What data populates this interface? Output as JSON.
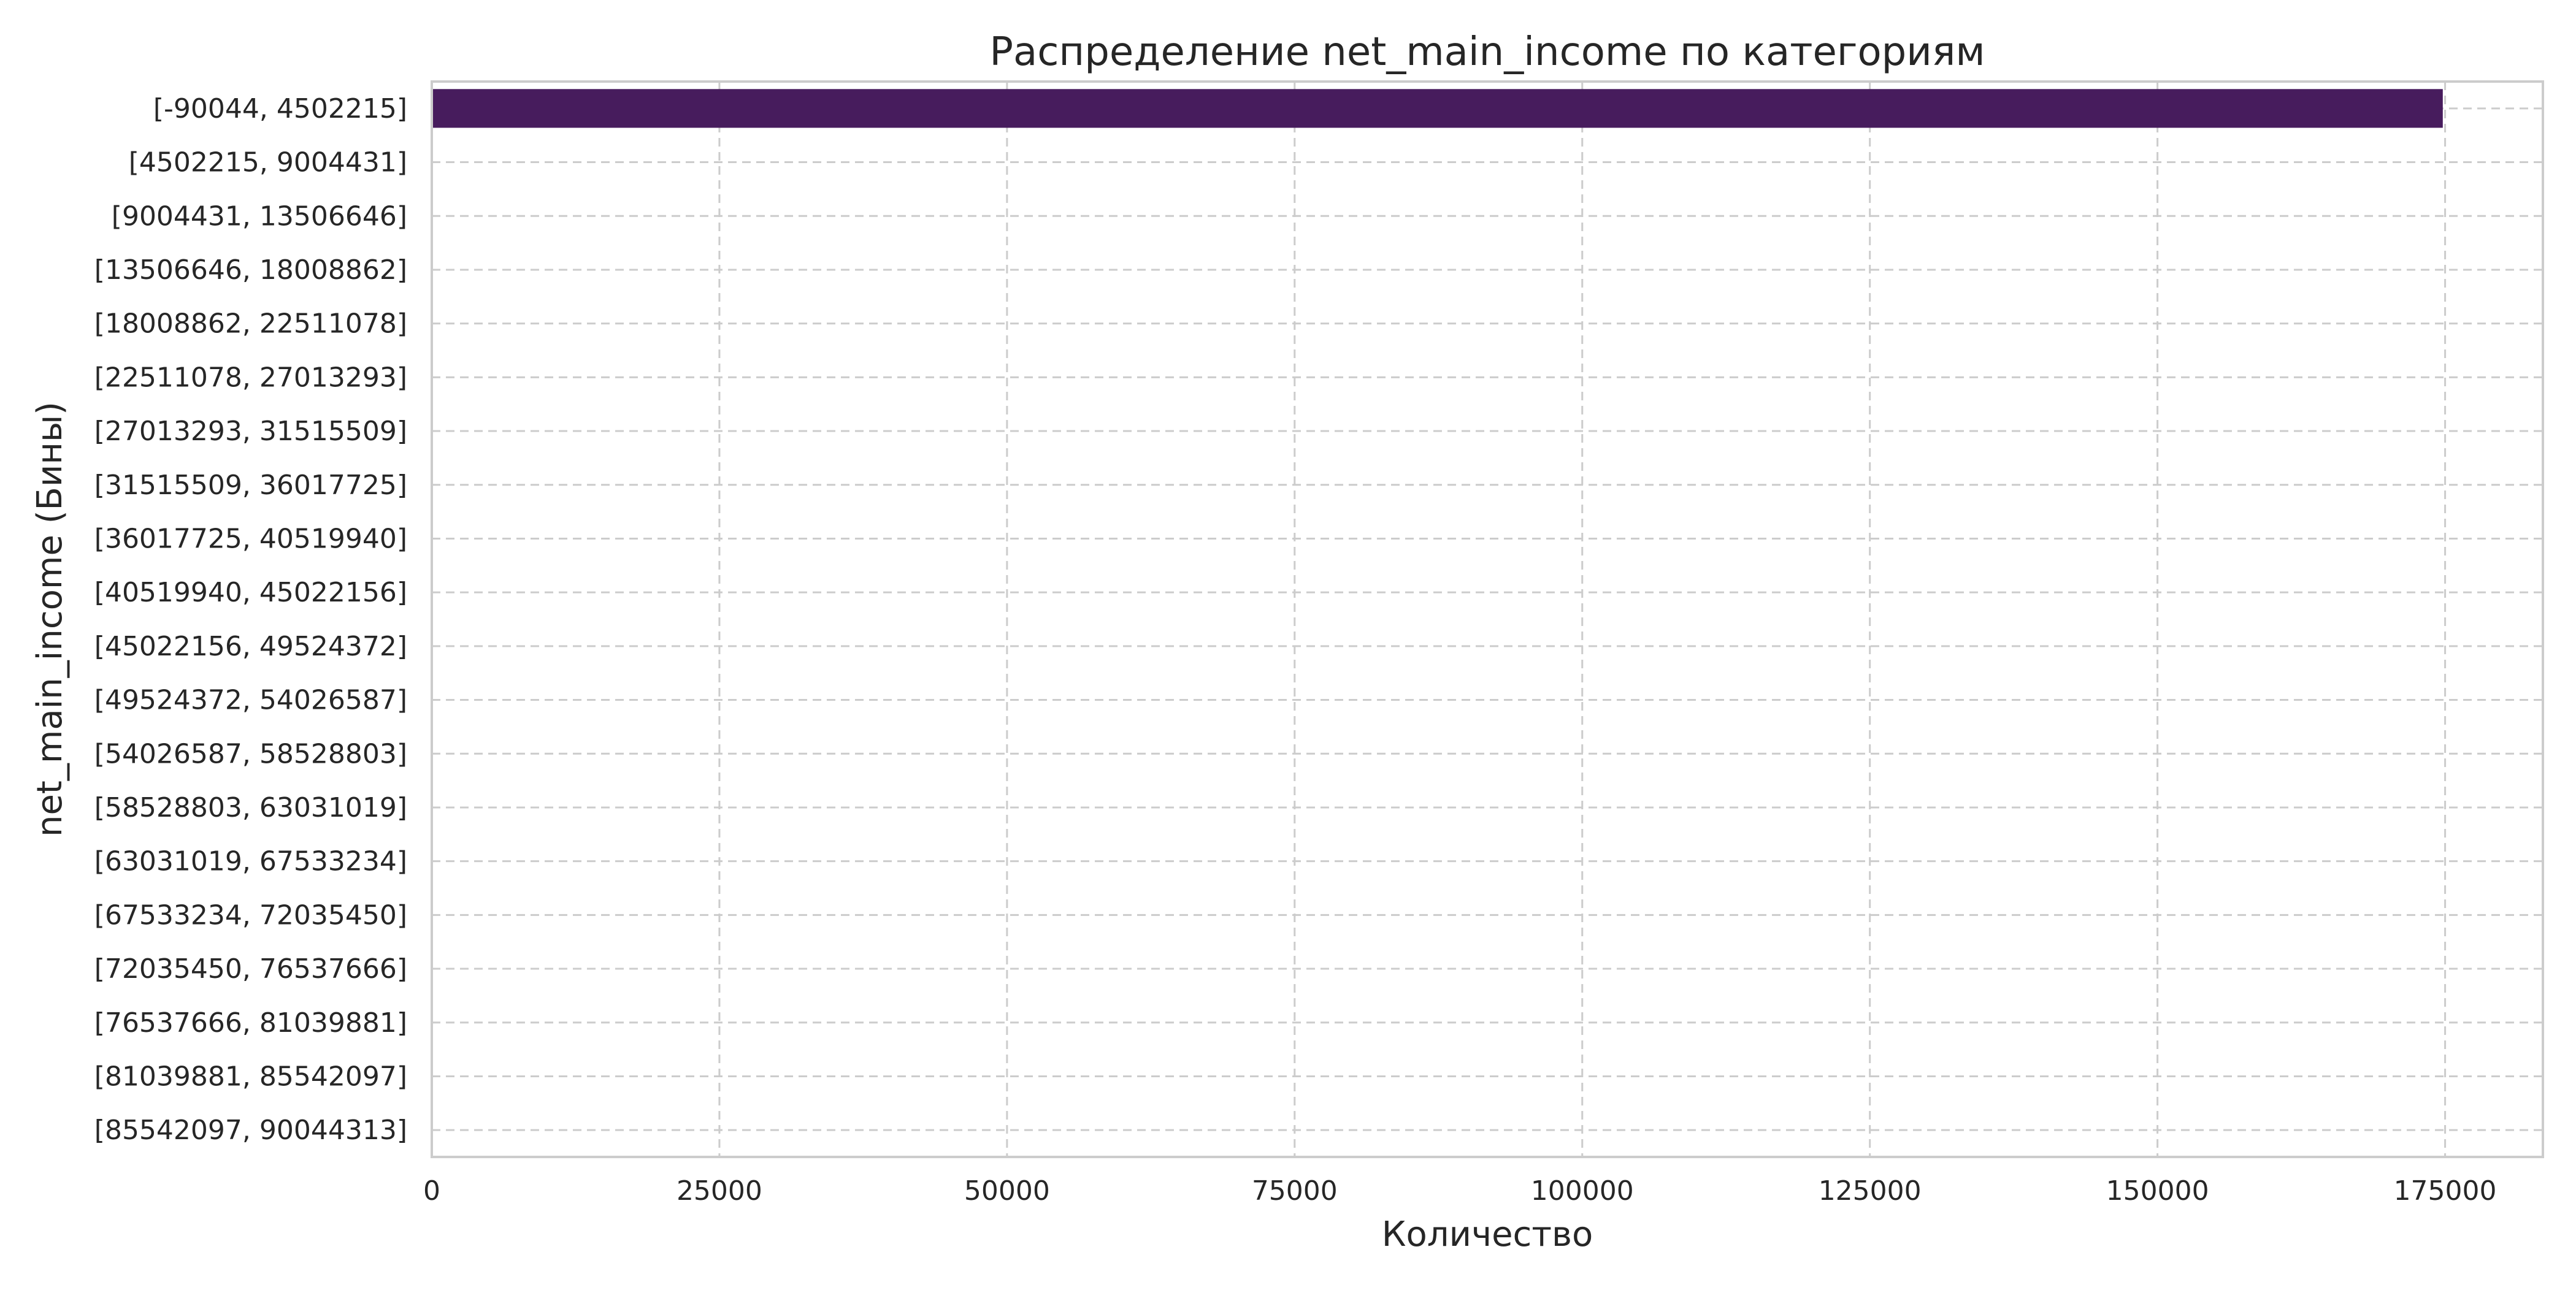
{
  "chart_data": {
    "type": "bar",
    "orientation": "horizontal",
    "title": "Распределение net_main_income по категориям",
    "xlabel": "Количество",
    "ylabel": "net_main_income (Бины)",
    "categories": [
      "[-90044, 4502215]",
      "[4502215, 9004431]",
      "[9004431, 13506646]",
      "[13506646, 18008862]",
      "[18008862, 22511078]",
      "[22511078, 27013293]",
      "[27013293, 31515509]",
      "[31515509, 36017725]",
      "[36017725, 40519940]",
      "[40519940, 45022156]",
      "[45022156, 49524372]",
      "[49524372, 54026587]",
      "[54026587, 58528803]",
      "[58528803, 63031019]",
      "[63031019, 67533234]",
      "[67533234, 72035450]",
      "[72035450, 76537666]",
      "[76537666, 81039881]",
      "[81039881, 85542097]",
      "[85542097, 90044313]"
    ],
    "values": [
      174800,
      0,
      0,
      0,
      0,
      0,
      0,
      0,
      0,
      0,
      0,
      0,
      0,
      0,
      0,
      0,
      0,
      0,
      0,
      0
    ],
    "xlim": [
      0,
      183500
    ],
    "xticks": [
      0,
      25000,
      50000,
      75000,
      100000,
      125000,
      150000,
      175000
    ],
    "grid": true,
    "bar_color": "#471c5d"
  }
}
